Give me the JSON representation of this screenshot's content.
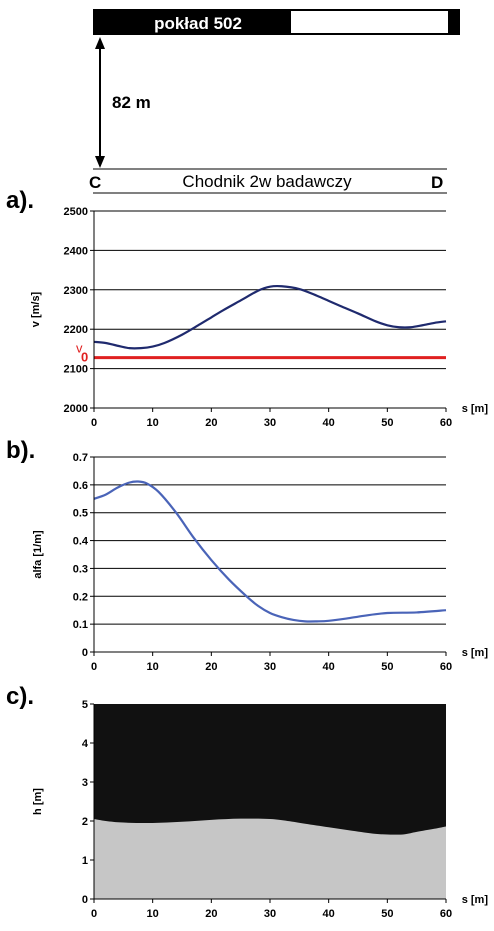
{
  "header": {
    "seam_label": "pokład 502",
    "distance_label": "82 m",
    "left_point": "C",
    "right_point": "D",
    "gallery_label": "Chodnik 2w badawczy"
  },
  "chart_data": [
    {
      "panel_label": "a).",
      "type": "line",
      "ylabel": "v [m/s]",
      "xlabel": "s [m]",
      "xlim": [
        0,
        60
      ],
      "ylim": [
        2000,
        2500
      ],
      "xticks": [
        0,
        10,
        20,
        30,
        40,
        50,
        60
      ],
      "yticks": [
        2000,
        2100,
        2200,
        2300,
        2400,
        2500
      ],
      "grid": "horizontal",
      "series": [
        {
          "color": "#1f2a6e",
          "x": [
            0,
            2,
            4,
            6,
            8,
            10,
            12,
            15,
            18,
            20,
            22,
            25,
            28,
            30,
            32,
            35,
            38,
            40,
            42,
            45,
            48,
            50,
            52,
            54,
            56,
            58,
            60
          ],
          "y": [
            2168,
            2165,
            2158,
            2152,
            2152,
            2156,
            2165,
            2186,
            2212,
            2230,
            2248,
            2273,
            2298,
            2308,
            2309,
            2302,
            2285,
            2272,
            2259,
            2240,
            2220,
            2210,
            2205,
            2205,
            2210,
            2216,
            2220
          ]
        },
        {
          "name": "v0",
          "color": "#e02020",
          "x": [
            0,
            60
          ],
          "y": [
            2128,
            2128
          ]
        }
      ],
      "annotations": [
        {
          "text": "v",
          "subscript": "0",
          "color": "#e02020",
          "at": [
            0,
            2128
          ]
        }
      ]
    },
    {
      "panel_label": "b).",
      "type": "line",
      "ylabel": "alfa [1/m]",
      "xlabel": "s [m]",
      "xlim": [
        0,
        60
      ],
      "ylim": [
        0,
        0.7
      ],
      "xticks": [
        0,
        10,
        20,
        30,
        40,
        50,
        60
      ],
      "yticks": [
        0,
        0.1,
        0.2,
        0.3,
        0.4,
        0.5,
        0.6,
        0.7
      ],
      "grid": "horizontal",
      "series": [
        {
          "color": "#4a64b8",
          "x": [
            0,
            2,
            4,
            6,
            7.5,
            9,
            11,
            14,
            17,
            20,
            23,
            26,
            28,
            30,
            32,
            34,
            36,
            38,
            40,
            43,
            46,
            50,
            55,
            60
          ],
          "y": [
            0.55,
            0.565,
            0.59,
            0.608,
            0.612,
            0.605,
            0.575,
            0.5,
            0.41,
            0.33,
            0.26,
            0.2,
            0.165,
            0.14,
            0.125,
            0.115,
            0.11,
            0.11,
            0.112,
            0.12,
            0.13,
            0.14,
            0.142,
            0.15
          ]
        }
      ]
    },
    {
      "panel_label": "c).",
      "type": "area",
      "ylabel": "h [m]",
      "xlabel": "s [m]",
      "xlim": [
        0,
        60
      ],
      "ylim": [
        0,
        5
      ],
      "xticks": [
        0,
        10,
        20,
        30,
        40,
        50,
        60
      ],
      "yticks": [
        0,
        1,
        2,
        3,
        4,
        5
      ],
      "grid": "none",
      "background_color": "#111111",
      "series": [
        {
          "color": "#c6c6c6",
          "x": [
            0,
            2,
            5,
            10,
            15,
            20,
            25,
            30,
            33,
            36,
            40,
            44,
            48,
            51,
            53,
            55,
            58,
            60
          ],
          "y": [
            2.05,
            2.0,
            1.96,
            1.95,
            1.98,
            2.03,
            2.06,
            2.05,
            2.0,
            1.93,
            1.84,
            1.75,
            1.67,
            1.65,
            1.66,
            1.72,
            1.8,
            1.86
          ]
        }
      ]
    }
  ]
}
